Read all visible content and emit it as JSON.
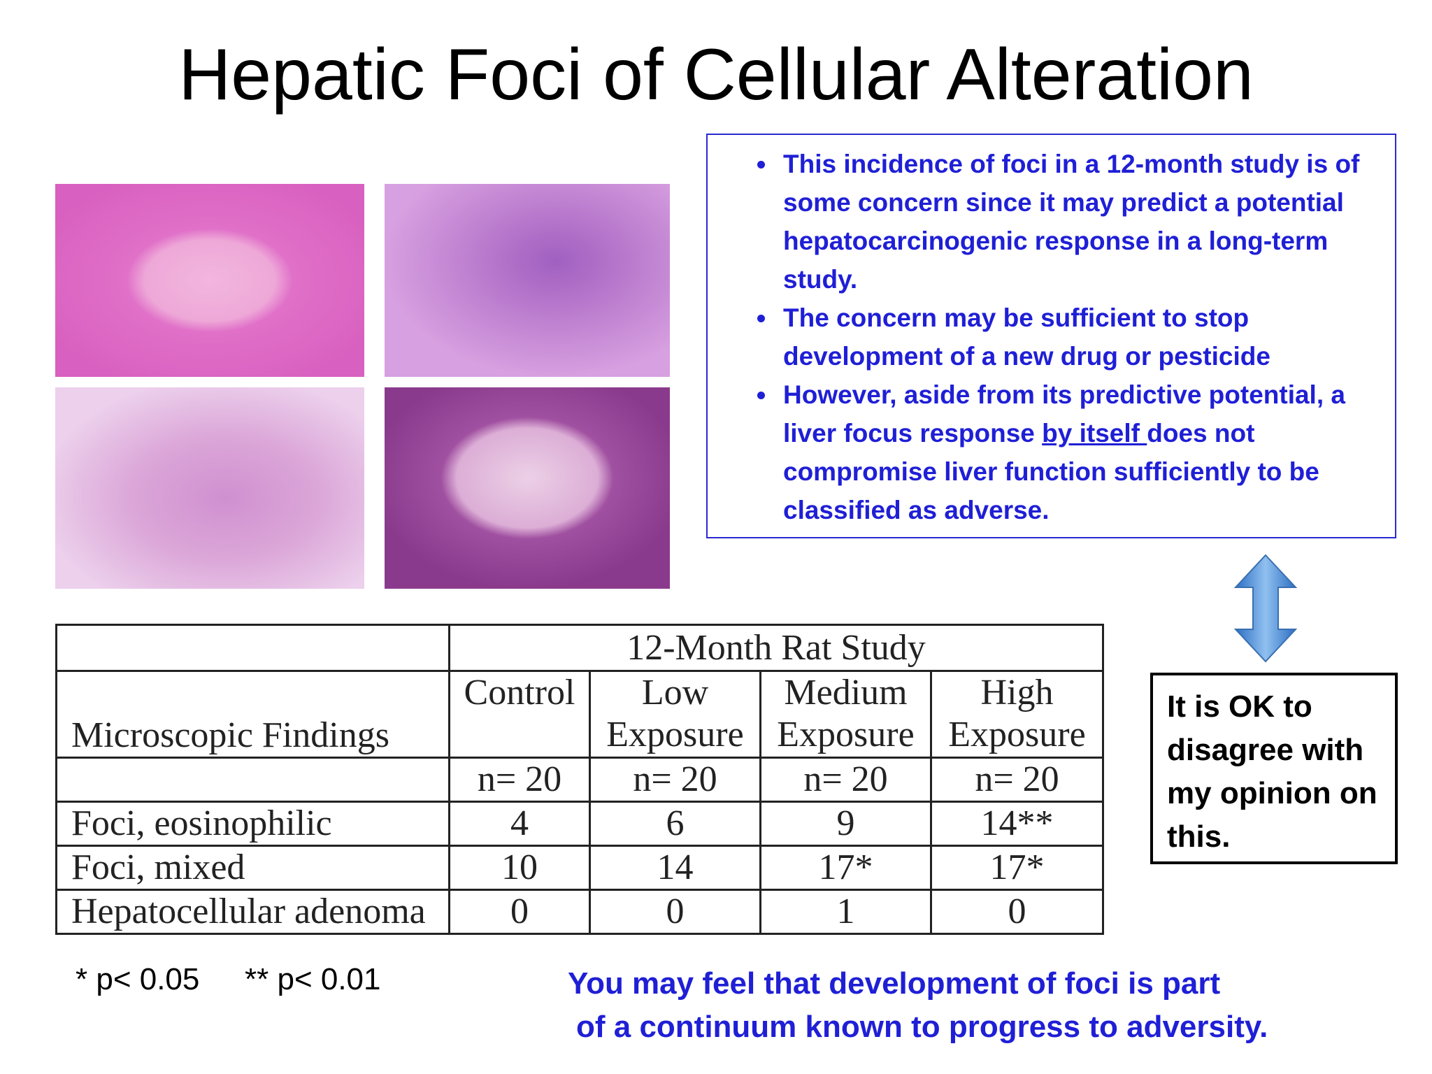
{
  "title": "Hepatic Foci of Cellular Alteration",
  "notes": {
    "bullets": [
      "This incidence of foci in a 12-month study is of some concern since it may predict a potential hepatocarcinogenic response in a long-term study.",
      "The concern may be sufficient to stop development of a new drug or pesticide",
      {
        "before": "However, aside from its predictive potential, a liver focus response ",
        "underlined": "by itself ",
        "after": "does not compromise liver function sufficiently to be classified as adverse."
      }
    ]
  },
  "table": {
    "group_header": "12-Month Rat Study",
    "row_header": "Microscopic Findings",
    "columns": [
      "Control",
      "Low Exposure",
      "Medium Exposure",
      "High Exposure"
    ],
    "n": [
      "n= 20",
      "n= 20",
      "n= 20",
      "n= 20"
    ],
    "rows": [
      {
        "label": "Foci, eosinophilic",
        "values": [
          "4",
          "6",
          "9",
          "14**"
        ]
      },
      {
        "label": "Foci, mixed",
        "values": [
          "10",
          "14",
          "17*",
          "17*"
        ]
      },
      {
        "label": "Hepatocellular adenoma",
        "values": [
          "0",
          "0",
          "1",
          "0"
        ]
      }
    ]
  },
  "footnotes": [
    "* p< 0.05",
    "** p< 0.01"
  ],
  "callout": "It is OK to disagree with my opinion on this.",
  "bottom_note": [
    "You may feel that development of foci is part",
    "of a continuum known to progress to adversity."
  ]
}
